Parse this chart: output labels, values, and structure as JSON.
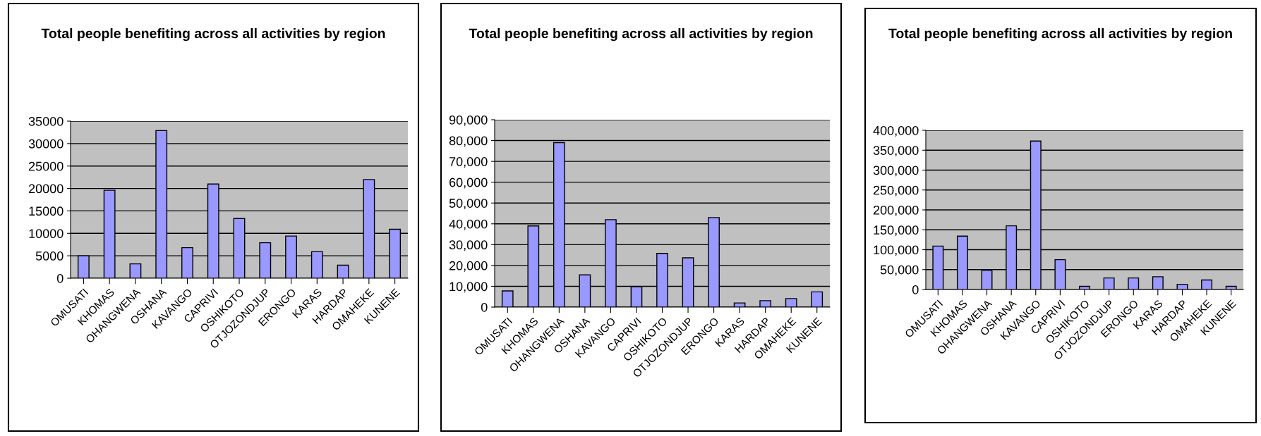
{
  "chart_data": [
    {
      "type": "bar",
      "title": "Total people benefiting across all activities by region",
      "categories": [
        "OMUSATI",
        "KHOMAS",
        "OHANGWENA",
        "OSHANA",
        "KAVANGO",
        "CAPRIVI",
        "OSHIKOTO",
        "OTJOZONDJUP",
        "ERONGO",
        "KARAS",
        "HARDAP",
        "OMAHEKE",
        "KUNENE"
      ],
      "values": [
        5000,
        19600,
        3200,
        32900,
        6800,
        21000,
        13300,
        7900,
        9400,
        5900,
        2900,
        22000,
        10900
      ],
      "color": "#9999ff",
      "ylim": [
        0,
        35000
      ],
      "yticks": [
        0,
        5000,
        10000,
        15000,
        20000,
        25000,
        30000,
        35000
      ],
      "grid": "y"
    },
    {
      "type": "bar",
      "title": "Total people benefiting across all activities by region",
      "categories": [
        "OMUSATI",
        "KHOMAS",
        "OHANGWENA",
        "OSHANA",
        "KAVANGO",
        "CAPRIVI",
        "OSHIKOTO",
        "OTJOZONDJUP",
        "ERONGO",
        "KARAS",
        "HARDAP",
        "OMAHEKE",
        "KUNENE"
      ],
      "values": [
        7800,
        39000,
        79000,
        15500,
        42000,
        9800,
        25800,
        23700,
        43000,
        2000,
        3100,
        4100,
        7300
      ],
      "color": "#9999ff",
      "ylim": [
        0,
        90000
      ],
      "yticks": [
        0,
        {
          "value": 10000,
          "label": "10,000"
        },
        {
          "value": 20000,
          "label": "20,000"
        },
        {
          "value": 30000,
          "label": "30,000"
        },
        {
          "value": 40000,
          "label": "40,000"
        },
        {
          "value": 50000,
          "label": "50,000"
        },
        {
          "value": 60000,
          "label": "60,000"
        },
        {
          "value": 70000,
          "label": "70,000"
        },
        {
          "value": 80000,
          "label": "80,000"
        },
        {
          "value": 90000,
          "label": "90,000"
        }
      ],
      "grid": "y"
    },
    {
      "type": "bar",
      "title": "Total people benefiting across all activities by region",
      "categories": [
        "OMUSATI",
        "KHOMAS",
        "OHANGWENA",
        "OSHANA",
        "KAVANGO",
        "CAPRIVI",
        "OSHIKOTO",
        "OTJOZONDJUP",
        "ERONGO",
        "KARAS",
        "HARDAP",
        "OMAHEKE",
        "KUNENE"
      ],
      "values": [
        109000,
        134000,
        48000,
        160000,
        373000,
        75000,
        8000,
        29000,
        29000,
        32000,
        13000,
        24000,
        8000
      ],
      "color": "#9999ff",
      "ylim": [
        0,
        400000
      ],
      "yticks": [
        0,
        {
          "value": 50000,
          "label": "50,000"
        },
        {
          "value": 100000,
          "label": "100,000"
        },
        {
          "value": 150000,
          "label": "150,000"
        },
        {
          "value": 200000,
          "label": "200,000"
        },
        {
          "value": 250000,
          "label": "250,000"
        },
        {
          "value": 300000,
          "label": "300,000"
        },
        {
          "value": 350000,
          "label": "350,000"
        },
        {
          "value": 400000,
          "label": "400,000"
        }
      ],
      "grid": "y"
    }
  ]
}
